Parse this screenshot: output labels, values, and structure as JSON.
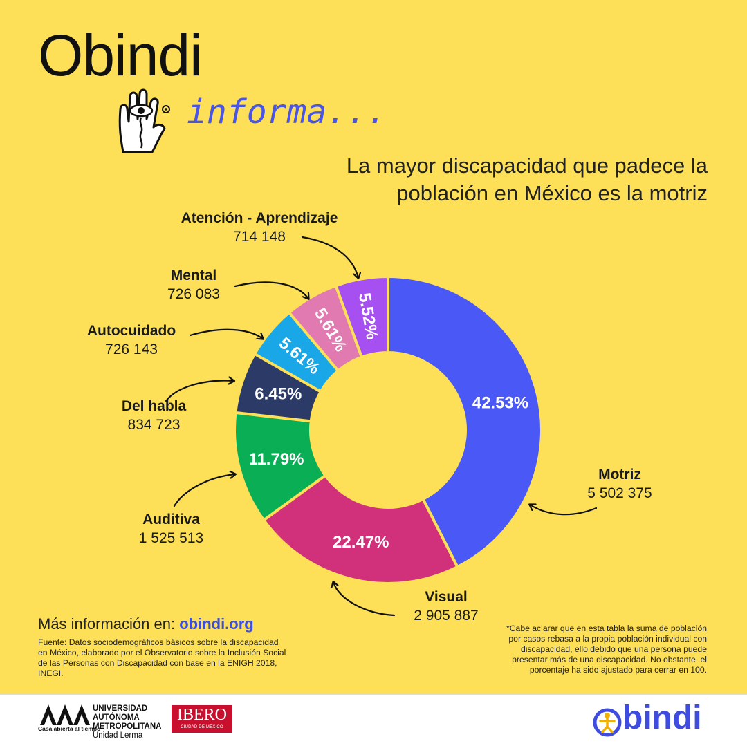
{
  "brand": {
    "title": "Obindi",
    "subtitle": "informa..."
  },
  "headline": [
    "La mayor discapacidad que padece la",
    "población en México es la motriz"
  ],
  "chart_data": {
    "type": "pie",
    "style": "donut",
    "slices": [
      {
        "name": "Motriz",
        "count": "5 502 375",
        "value": 42.53,
        "label": "42.53%",
        "color": "#4a58f6"
      },
      {
        "name": "Visual",
        "count": "2 905 887",
        "value": 22.47,
        "label": "22.47%",
        "color": "#d0317a"
      },
      {
        "name": "Auditiva",
        "count": "1 525 513",
        "value": 11.79,
        "label": "11.79%",
        "color": "#0aae55"
      },
      {
        "name": "Del habla",
        "count": "834 723",
        "value": 6.45,
        "label": "6.45%",
        "color": "#2b3a66"
      },
      {
        "name": "Autocuidado",
        "count": "726 143",
        "value": 5.61,
        "label": "5.61%",
        "color": "#1aa7e8"
      },
      {
        "name": "Mental",
        "count": "726 083",
        "value": 5.61,
        "label": "5.61%",
        "color": "#e07ab0"
      },
      {
        "name": "Atención - Aprendizaje",
        "count": "714 148",
        "value": 5.52,
        "label": "5.52%",
        "color": "#a650f2"
      }
    ]
  },
  "more_info": {
    "prefix": "Más información en: ",
    "link": "obindi.org"
  },
  "source": "Fuente: Datos sociodemográficos básicos sobre la discapacidad en México, elaborado por el Observatorio sobre la Inclusión Social de las Personas con Discapacidad con base en la ENIGH 2018, INEGI.",
  "footnote": "*Cabe aclarar que en esta tabla la suma de población por casos rebasa a la propia población individual con discapacidad, ello debido que una persona puede presentar más de una discapacidad. No obstante, el porcentaje ha sido ajustado para cerrar en 100.",
  "footer": {
    "uam_lines": [
      "UNIVERSIDAD",
      "AUTÓNOMA",
      "METROPOLITANA",
      "Unidad Lerma"
    ],
    "uam_tagline": "Casa abierta al tiempo",
    "ibero_name": "IBERO",
    "ibero_sub": "CIUDAD DE MÉXICO",
    "obindi_word": "bindi"
  },
  "colors": {
    "background": "#fde058",
    "accent_blue": "#3e4de0"
  }
}
